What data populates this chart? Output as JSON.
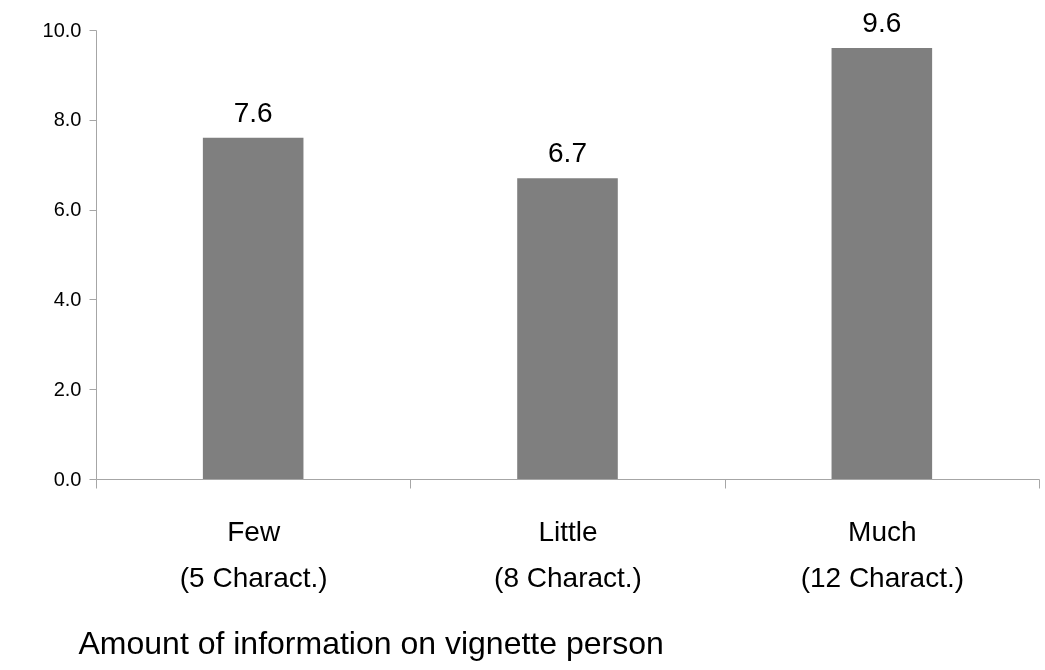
{
  "chart_data": {
    "type": "bar",
    "xlabel": "Amount of information on vignette person",
    "categories": [
      "Few\n(5 Charact.)",
      "Little\n(8 Charact.)",
      "Much\n(12 Charact.)"
    ],
    "values": [
      7.6,
      6.7,
      9.6
    ],
    "color": "#7f7f7f",
    "ylim": [
      0,
      10
    ],
    "yticks": [
      {
        "value": 0,
        "label": "0.0"
      },
      {
        "value": 2,
        "label": "2.0"
      },
      {
        "value": 4,
        "label": "4.0"
      },
      {
        "value": 6,
        "label": "6.0"
      },
      {
        "value": 8,
        "label": "8.0"
      },
      {
        "value": 10,
        "label": "10.0"
      }
    ],
    "data_labels": true
  }
}
